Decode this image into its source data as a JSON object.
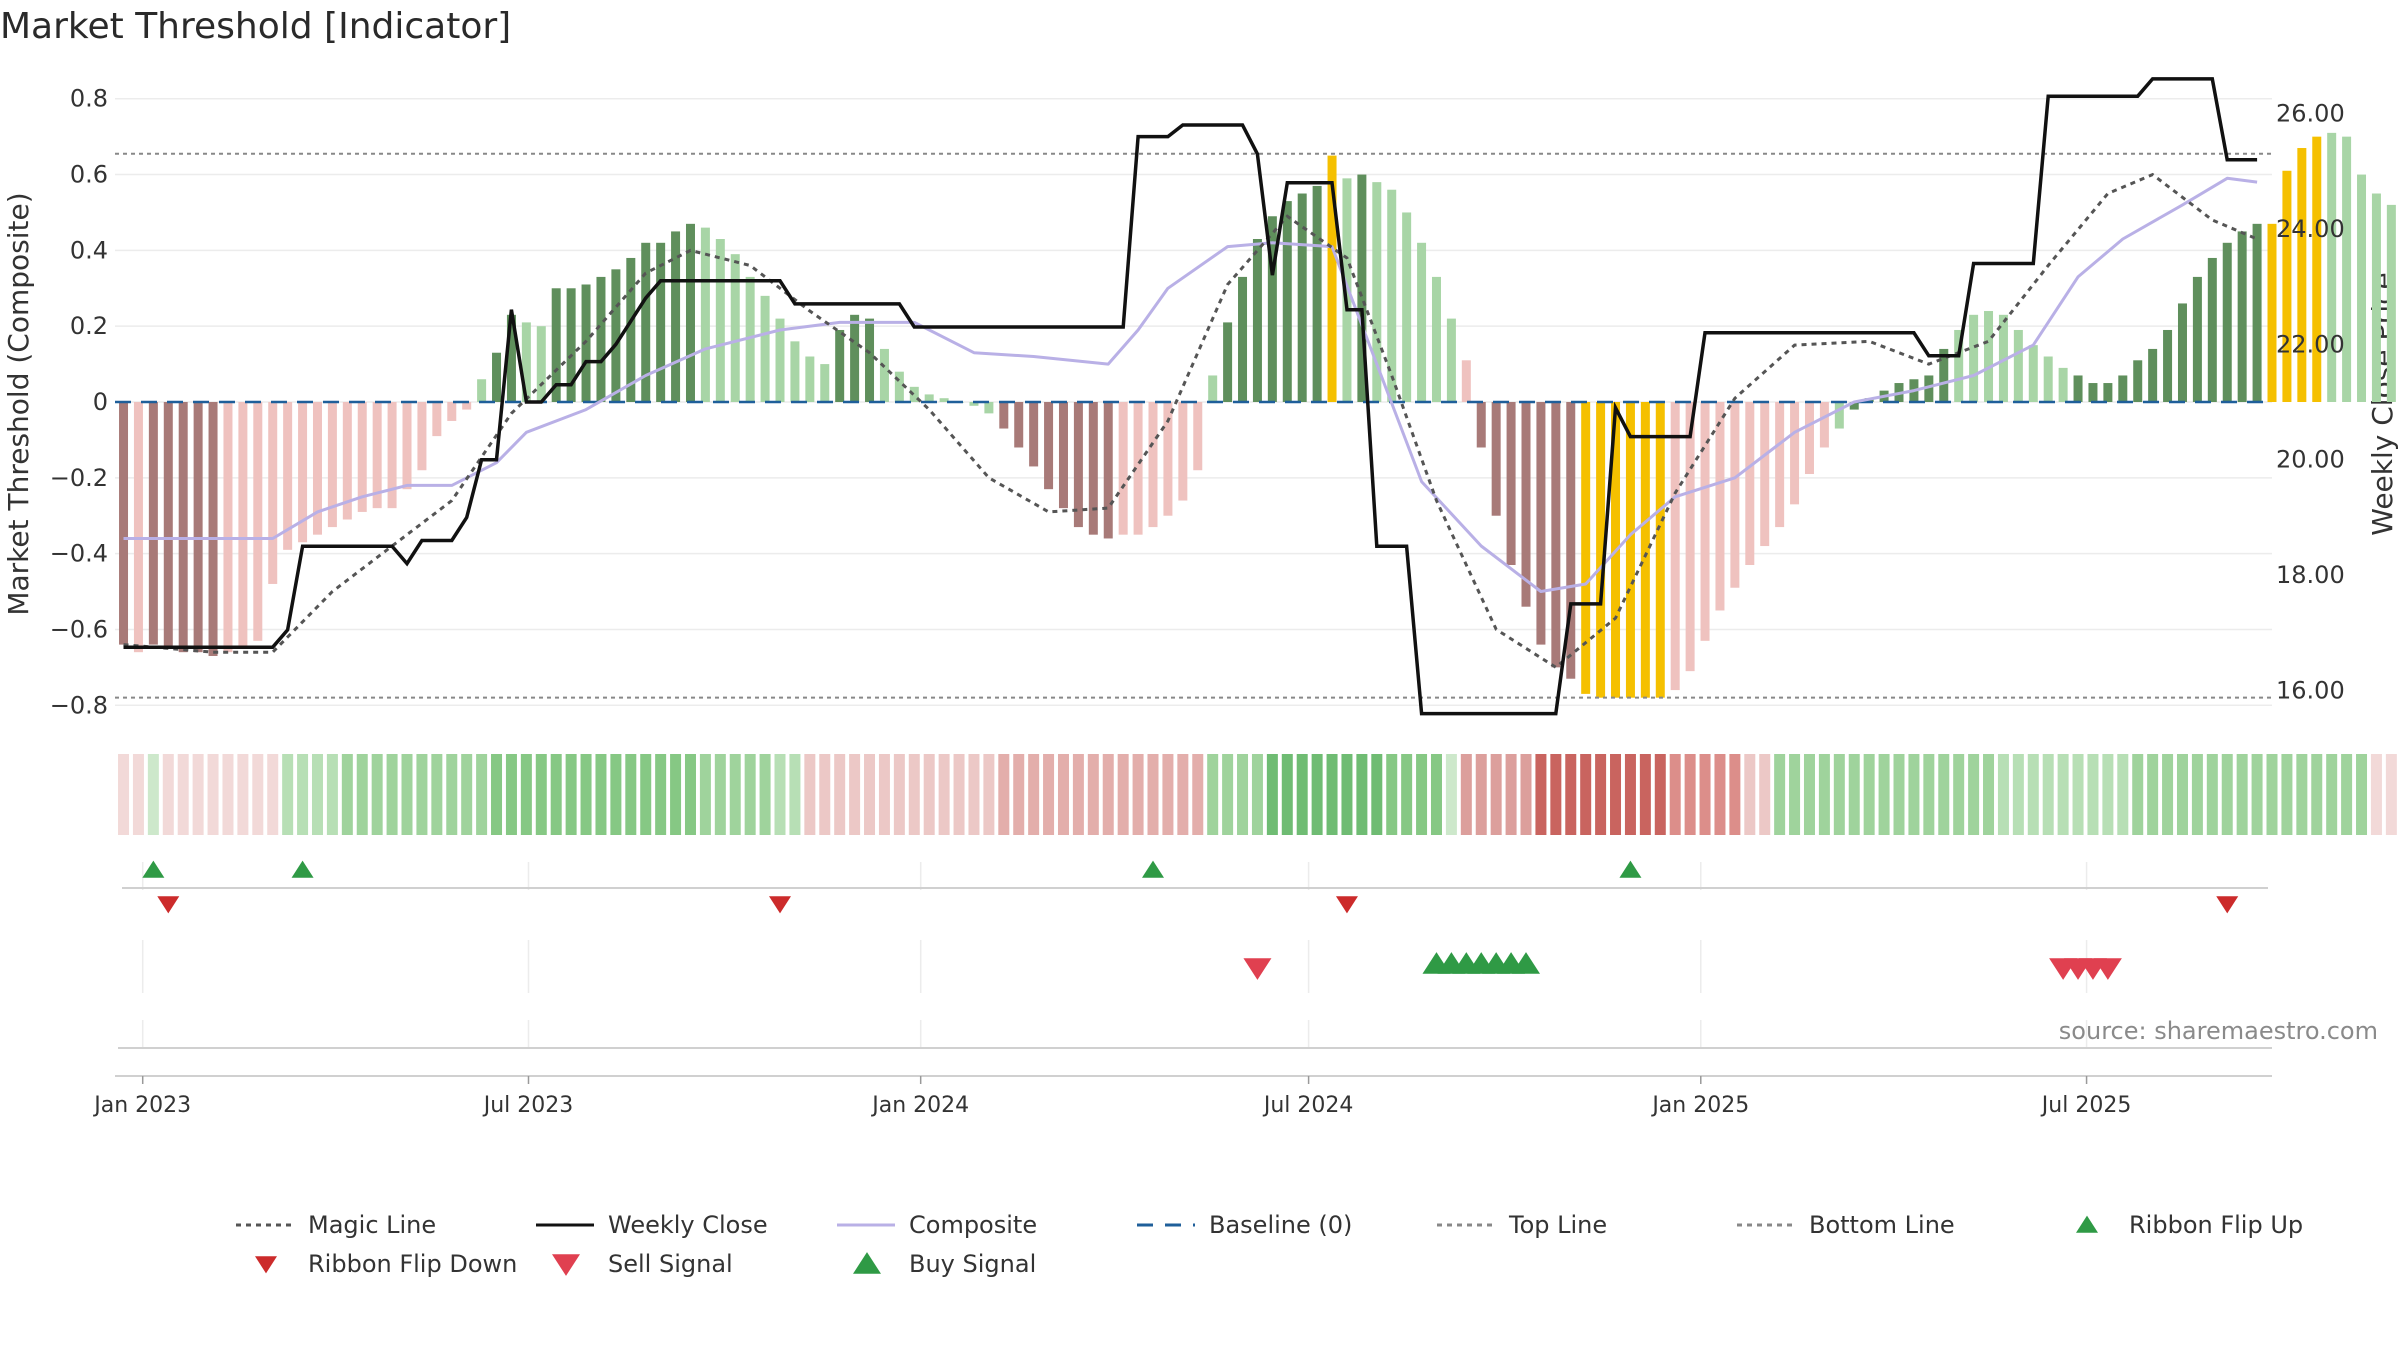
{
  "chart_data": {
    "type": "bar",
    "title": "Market Threshold [Indicator]",
    "ylabel": "Market Threshold (Composite)",
    "y2label": "Weekly Close Price",
    "ylim": [
      -0.86,
      0.86
    ],
    "y2lim": [
      15.35,
      26.65
    ],
    "yticks": [
      0.8,
      0.6,
      0.4,
      0.2,
      0,
      -0.2,
      -0.4,
      -0.6,
      -0.8
    ],
    "yticklabels": [
      "0.8",
      "0.6",
      "0.4",
      "0.2",
      "0",
      "−0.2",
      "−0.4",
      "−0.6",
      "−0.8"
    ],
    "y2ticks": [
      26,
      24,
      22,
      20,
      18,
      16
    ],
    "y2ticklabels": [
      "26.00",
      "24.00",
      "22.00",
      "20.00",
      "18.00",
      "16.00"
    ],
    "x_start": "2022-12-19",
    "x_end": "2025-09-26",
    "xticks": [
      {
        "date": "2023-01-01",
        "label": "Jan 2023"
      },
      {
        "date": "2023-07-01",
        "label": "Jul 2023"
      },
      {
        "date": "2024-01-01",
        "label": "Jan 2024"
      },
      {
        "date": "2024-07-01",
        "label": "Jul 2024"
      },
      {
        "date": "2025-01-01",
        "label": "Jan 2025"
      },
      {
        "date": "2025-07-01",
        "label": "Jul 2025"
      }
    ],
    "top_line": 0.655,
    "bottom_line": -0.78,
    "baseline": 0,
    "first_week": "2022-12-23",
    "composite_bars": [
      -0.64,
      -0.66,
      -0.64,
      -0.65,
      -0.66,
      -0.66,
      -0.67,
      -0.66,
      -0.65,
      -0.63,
      -0.48,
      -0.39,
      -0.37,
      -0.35,
      -0.33,
      -0.31,
      -0.29,
      -0.28,
      -0.28,
      -0.23,
      -0.18,
      -0.09,
      -0.05,
      -0.02,
      0.06,
      0.13,
      0.23,
      0.21,
      0.2,
      0.3,
      0.3,
      0.31,
      0.33,
      0.35,
      0.38,
      0.42,
      0.42,
      0.45,
      0.47,
      0.46,
      0.43,
      0.39,
      0.33,
      0.28,
      0.22,
      0.16,
      0.12,
      0.1,
      0.19,
      0.23,
      0.22,
      0.14,
      0.08,
      0.04,
      0.02,
      0.01,
      0,
      -0.01,
      -0.03,
      -0.07,
      -0.12,
      -0.17,
      -0.23,
      -0.28,
      -0.33,
      -0.35,
      -0.36,
      -0.35,
      -0.35,
      -0.33,
      -0.3,
      -0.26,
      -0.18,
      0.07,
      0.21,
      0.33,
      0.43,
      0.49,
      0.53,
      0.55,
      0.57,
      0.65,
      0.59,
      0.6,
      0.58,
      0.56,
      0.5,
      0.42,
      0.33,
      0.22,
      0.11,
      -0.12,
      -0.3,
      -0.43,
      -0.54,
      -0.64,
      -0.7,
      -0.73,
      -0.77,
      -0.78,
      -0.78,
      -0.78,
      -0.78,
      -0.78,
      -0.76,
      -0.71,
      -0.63,
      -0.55,
      -0.49,
      -0.43,
      -0.38,
      -0.33,
      -0.27,
      -0.19,
      -0.12,
      -0.07,
      -0.02,
      0.01,
      0.03,
      0.05,
      0.06,
      0.07,
      0.14,
      0.19,
      0.23,
      0.24,
      0.23,
      0.19,
      0.15,
      0.12,
      0.09,
      0.07,
      0.05,
      0.05,
      0.07,
      0.11,
      0.14,
      0.19,
      0.26,
      0.33,
      0.38,
      0.42,
      0.45,
      0.47,
      0.47,
      0.61,
      0.67,
      0.7,
      0.71,
      0.7,
      0.6,
      0.55,
      0.52,
      0.44,
      0.39,
      0.37,
      0.37,
      0.37,
      0.41,
      0.43
    ],
    "bar_colors": [
      {
        "from": 0,
        "to": 0,
        "color": "#a87a78"
      },
      {
        "from": 1,
        "to": 1,
        "color": "#efc2bf"
      },
      {
        "from": 2,
        "to": 6,
        "color": "#a87a78"
      },
      {
        "from": 7,
        "to": 23,
        "color": "#efc2bf"
      },
      {
        "from": 24,
        "to": 24,
        "color": "#a8d5a6"
      },
      {
        "from": 25,
        "to": 26,
        "color": "#5f8f5c"
      },
      {
        "from": 27,
        "to": 28,
        "color": "#a8d5a6"
      },
      {
        "from": 29,
        "to": 38,
        "color": "#5f8f5c"
      },
      {
        "from": 39,
        "to": 47,
        "color": "#a8d5a6"
      },
      {
        "from": 48,
        "to": 50,
        "color": "#5f8f5c"
      },
      {
        "from": 51,
        "to": 58,
        "color": "#a8d5a6"
      },
      {
        "from": 59,
        "to": 66,
        "color": "#a87a78"
      },
      {
        "from": 67,
        "to": 72,
        "color": "#efc2bf"
      },
      {
        "from": 73,
        "to": 73,
        "color": "#a8d5a6"
      },
      {
        "from": 74,
        "to": 80,
        "color": "#5f8f5c"
      },
      {
        "from": 81,
        "to": 81,
        "color": "#f5c000"
      },
      {
        "from": 82,
        "to": 82,
        "color": "#a8d5a6"
      },
      {
        "from": 83,
        "to": 83,
        "color": "#5f8f5c"
      },
      {
        "from": 84,
        "to": 89,
        "color": "#a8d5a6"
      },
      {
        "from": 90,
        "to": 90,
        "color": "#efc2bf"
      },
      {
        "from": 91,
        "to": 97,
        "color": "#a87a78"
      },
      {
        "from": 98,
        "to": 103,
        "color": "#f5c000"
      },
      {
        "from": 104,
        "to": 114,
        "color": "#efc2bf"
      },
      {
        "from": 115,
        "to": 115,
        "color": "#a8d5a6"
      },
      {
        "from": 116,
        "to": 122,
        "color": "#5f8f5c"
      },
      {
        "from": 123,
        "to": 130,
        "color": "#a8d5a6"
      },
      {
        "from": 131,
        "to": 143,
        "color": "#5f8f5c"
      },
      {
        "from": 144,
        "to": 147,
        "color": "#f5c000"
      },
      {
        "from": 148,
        "to": 153,
        "color": "#a8d5a6"
      },
      {
        "from": 154,
        "to": 155,
        "color": "#5f8f5c"
      }
    ],
    "ribbon_colors": [
      {
        "from": 0,
        "to": 1,
        "color": "#f2d9d8"
      },
      {
        "from": 2,
        "to": 2,
        "color": "#cde8cb"
      },
      {
        "from": 3,
        "to": 10,
        "color": "#f2d9d8"
      },
      {
        "from": 11,
        "to": 14,
        "color": "#b7dfb5"
      },
      {
        "from": 15,
        "to": 24,
        "color": "#9fd39c"
      },
      {
        "from": 25,
        "to": 38,
        "color": "#86c884"
      },
      {
        "from": 39,
        "to": 43,
        "color": "#9fd39c"
      },
      {
        "from": 44,
        "to": 45,
        "color": "#b7dfb5"
      },
      {
        "from": 46,
        "to": 58,
        "color": "#ecc8c6"
      },
      {
        "from": 59,
        "to": 72,
        "color": "#e3aeab"
      },
      {
        "from": 73,
        "to": 76,
        "color": "#9fd39c"
      },
      {
        "from": 77,
        "to": 84,
        "color": "#6fbc73"
      },
      {
        "from": 85,
        "to": 88,
        "color": "#86c884"
      },
      {
        "from": 89,
        "to": 89,
        "color": "#cde8cb"
      },
      {
        "from": 90,
        "to": 94,
        "color": "#dc9f9c"
      },
      {
        "from": 95,
        "to": 103,
        "color": "#c9645f"
      },
      {
        "from": 104,
        "to": 108,
        "color": "#dc8e8a"
      },
      {
        "from": 109,
        "to": 110,
        "color": "#ecc8c6"
      },
      {
        "from": 111,
        "to": 125,
        "color": "#9fd39c"
      },
      {
        "from": 126,
        "to": 134,
        "color": "#b7dfb5"
      },
      {
        "from": 135,
        "to": 150,
        "color": "#9fd39c"
      },
      {
        "from": 151,
        "to": 155,
        "color": "#f2d9d8"
      }
    ],
    "weekly_close": [
      [
        "2022-12-23",
        16.75
      ],
      [
        "2023-03-03",
        16.75
      ],
      [
        "2023-03-10",
        17.05
      ],
      [
        "2023-03-17",
        18.5
      ],
      [
        "2023-04-28",
        18.5
      ],
      [
        "2023-05-05",
        18.2
      ],
      [
        "2023-05-12",
        18.6
      ],
      [
        "2023-05-26",
        18.6
      ],
      [
        "2023-06-02",
        19.0
      ],
      [
        "2023-06-09",
        20.0
      ],
      [
        "2023-06-16",
        20.0
      ],
      [
        "2023-06-23",
        22.6
      ],
      [
        "2023-06-30",
        21.0
      ],
      [
        "2023-07-07",
        21.0
      ],
      [
        "2023-07-14",
        21.3
      ],
      [
        "2023-07-21",
        21.3
      ],
      [
        "2023-07-28",
        21.7
      ],
      [
        "2023-08-04",
        21.7
      ],
      [
        "2023-08-11",
        22.0
      ],
      [
        "2023-08-18",
        22.4
      ],
      [
        "2023-08-25",
        22.8
      ],
      [
        "2023-09-01",
        23.1
      ],
      [
        "2023-10-27",
        23.1
      ],
      [
        "2023-11-03",
        22.7
      ],
      [
        "2023-12-22",
        22.7
      ],
      [
        "2023-12-29",
        22.3
      ],
      [
        "2024-04-05",
        22.3
      ],
      [
        "2024-04-12",
        25.6
      ],
      [
        "2024-04-26",
        25.6
      ],
      [
        "2024-05-03",
        25.8
      ],
      [
        "2024-05-31",
        25.8
      ],
      [
        "2024-06-07",
        25.3
      ],
      [
        "2024-06-14",
        23.2
      ],
      [
        "2024-06-21",
        24.8
      ],
      [
        "2024-07-12",
        24.8
      ],
      [
        "2024-07-19",
        22.6
      ],
      [
        "2024-07-26",
        22.6
      ],
      [
        "2024-08-02",
        18.5
      ],
      [
        "2024-08-16",
        18.5
      ],
      [
        "2024-08-23",
        15.6
      ],
      [
        "2024-10-25",
        15.6
      ],
      [
        "2024-11-01",
        17.5
      ],
      [
        "2024-11-15",
        17.5
      ],
      [
        "2024-11-22",
        20.9
      ],
      [
        "2024-11-29",
        20.4
      ],
      [
        "2024-12-20",
        20.4
      ],
      [
        "2024-12-27",
        20.4
      ],
      [
        "2025-01-03",
        22.2
      ],
      [
        "2025-04-11",
        22.2
      ],
      [
        "2025-04-18",
        21.8
      ],
      [
        "2025-05-02",
        21.8
      ],
      [
        "2025-05-09",
        23.4
      ],
      [
        "2025-06-06",
        23.4
      ],
      [
        "2025-06-13",
        26.3
      ],
      [
        "2025-07-25",
        26.3
      ],
      [
        "2025-08-01",
        26.6
      ],
      [
        "2025-08-29",
        26.6
      ],
      [
        "2025-09-05",
        25.2
      ],
      [
        "2025-09-19",
        25.2
      ]
    ],
    "composite": [
      [
        "2022-12-23",
        -0.36
      ],
      [
        "2023-03-03",
        -0.36
      ],
      [
        "2023-03-24",
        -0.29
      ],
      [
        "2023-04-14",
        -0.25
      ],
      [
        "2023-05-05",
        -0.22
      ],
      [
        "2023-05-26",
        -0.22
      ],
      [
        "2023-06-16",
        -0.16
      ],
      [
        "2023-06-30",
        -0.08
      ],
      [
        "2023-07-28",
        -0.02
      ],
      [
        "2023-08-25",
        0.07
      ],
      [
        "2023-09-22",
        0.14
      ],
      [
        "2023-10-27",
        0.19
      ],
      [
        "2023-11-24",
        0.21
      ],
      [
        "2023-12-29",
        0.21
      ],
      [
        "2024-01-26",
        0.13
      ],
      [
        "2024-02-23",
        0.12
      ],
      [
        "2024-03-29",
        0.1
      ],
      [
        "2024-04-12",
        0.19
      ],
      [
        "2024-04-26",
        0.3
      ],
      [
        "2024-05-24",
        0.41
      ],
      [
        "2024-06-14",
        0.42
      ],
      [
        "2024-07-12",
        0.41
      ],
      [
        "2024-08-02",
        0.1
      ],
      [
        "2024-08-23",
        -0.21
      ],
      [
        "2024-09-20",
        -0.38
      ],
      [
        "2024-10-18",
        -0.5
      ],
      [
        "2024-11-08",
        -0.48
      ],
      [
        "2024-11-29",
        -0.35
      ],
      [
        "2024-12-20",
        -0.25
      ],
      [
        "2025-01-17",
        -0.2
      ],
      [
        "2025-02-14",
        -0.08
      ],
      [
        "2025-03-14",
        0.0
      ],
      [
        "2025-04-11",
        0.03
      ],
      [
        "2025-05-09",
        0.07
      ],
      [
        "2025-06-06",
        0.15
      ],
      [
        "2025-06-27",
        0.33
      ],
      [
        "2025-07-18",
        0.43
      ],
      [
        "2025-08-15",
        0.52
      ],
      [
        "2025-09-05",
        0.59
      ],
      [
        "2025-09-19",
        0.58
      ]
    ],
    "magic_line": [
      [
        "2022-12-23",
        -0.64
      ],
      [
        "2023-02-03",
        -0.66
      ],
      [
        "2023-03-03",
        -0.66
      ],
      [
        "2023-03-31",
        -0.5
      ],
      [
        "2023-04-28",
        -0.38
      ],
      [
        "2023-05-26",
        -0.26
      ],
      [
        "2023-06-23",
        -0.03
      ],
      [
        "2023-07-28",
        0.16
      ],
      [
        "2023-08-25",
        0.34
      ],
      [
        "2023-09-15",
        0.4
      ],
      [
        "2023-10-13",
        0.36
      ],
      [
        "2023-11-10",
        0.24
      ],
      [
        "2023-12-08",
        0.13
      ],
      [
        "2024-01-05",
        -0.02
      ],
      [
        "2024-02-02",
        -0.2
      ],
      [
        "2024-03-01",
        -0.29
      ],
      [
        "2024-03-29",
        -0.28
      ],
      [
        "2024-04-26",
        -0.05
      ],
      [
        "2024-05-24",
        0.31
      ],
      [
        "2024-06-21",
        0.49
      ],
      [
        "2024-07-19",
        0.38
      ],
      [
        "2024-08-09",
        0.07
      ],
      [
        "2024-08-30",
        -0.26
      ],
      [
        "2024-09-27",
        -0.6
      ],
      [
        "2024-10-25",
        -0.7
      ],
      [
        "2024-11-22",
        -0.57
      ],
      [
        "2024-12-20",
        -0.24
      ],
      [
        "2025-01-17",
        0.01
      ],
      [
        "2025-02-14",
        0.15
      ],
      [
        "2025-03-21",
        0.16
      ],
      [
        "2025-04-18",
        0.1
      ],
      [
        "2025-05-16",
        0.16
      ],
      [
        "2025-06-13",
        0.36
      ],
      [
        "2025-07-11",
        0.55
      ],
      [
        "2025-08-01",
        0.6
      ],
      [
        "2025-08-29",
        0.48
      ],
      [
        "2025-09-19",
        0.43
      ]
    ],
    "markers": {
      "ribbon_flip_up": [
        "2023-01-06",
        "2023-03-17",
        "2024-04-19",
        "2024-11-29"
      ],
      "ribbon_flip_down": [
        "2023-01-13",
        "2023-10-27",
        "2024-07-19",
        "2025-09-05"
      ],
      "sell_signal": [
        "2024-06-07",
        "2025-06-20",
        "2025-06-27",
        "2025-07-04",
        "2025-07-11"
      ],
      "buy_signal": [
        "2024-08-30",
        "2024-09-06",
        "2024-09-13",
        "2024-09-20",
        "2024-09-27",
        "2024-10-04",
        "2024-10-11"
      ]
    },
    "source_text": "source: sharemaestro.com",
    "legend": [
      {
        "label": "Magic Line",
        "style": "dotted-line",
        "color": "#555555"
      },
      {
        "label": "Weekly Close",
        "style": "solid-line",
        "color": "#111111"
      },
      {
        "label": "Composite",
        "style": "solid-line",
        "color": "#b9b0e6"
      },
      {
        "label": "Baseline (0)",
        "style": "dashed-line",
        "color": "#1f5f9a"
      },
      {
        "label": "Top Line",
        "style": "dotted-line",
        "color": "#888888"
      },
      {
        "label": "Bottom Line",
        "style": "dotted-line",
        "color": "#888888"
      },
      {
        "label": "Ribbon Flip Up",
        "style": "triangle-up",
        "color": "#2f9a45"
      },
      {
        "label": "Ribbon Flip Down",
        "style": "triangle-down",
        "color": "#cc2b2b"
      },
      {
        "label": "Sell Signal",
        "style": "triangle-down",
        "color": "#e04050"
      },
      {
        "label": "Buy Signal",
        "style": "triangle-up",
        "color": "#2f9a45"
      }
    ]
  }
}
